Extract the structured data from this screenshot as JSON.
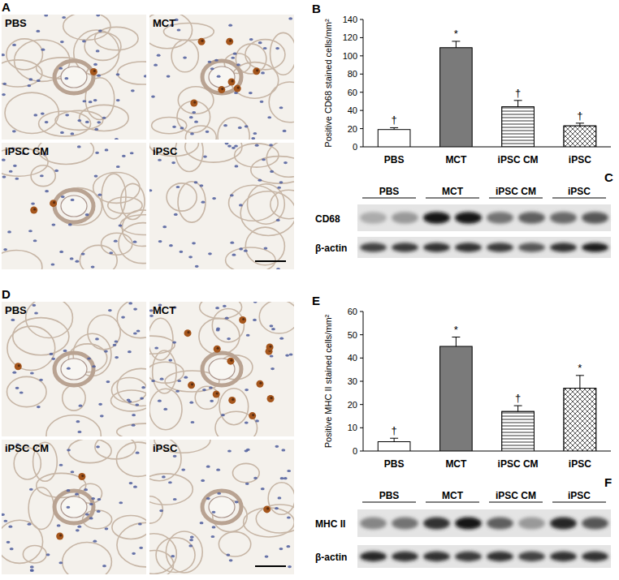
{
  "panels": [
    {
      "label": "A",
      "images": [
        "PBS",
        "MCT",
        "iPSC CM",
        "iPSC"
      ]
    },
    {
      "label": "D",
      "images": [
        "PBS",
        "MCT",
        "iPSC CM",
        "iPSC"
      ]
    }
  ],
  "chart_data": [
    {
      "type": "bar",
      "title": "B",
      "y_label": "Positive CD68 stained cells/mm²",
      "categories": [
        "PBS",
        "MCT",
        "iPSC CM",
        "iPSC"
      ],
      "values": [
        19,
        109,
        44,
        23
      ],
      "errors": [
        2,
        7,
        7,
        3
      ],
      "annotations": [
        "†",
        "*",
        "†",
        "†"
      ],
      "colors": [
        "#ffffff",
        "#7a7a7a",
        "#ffffff",
        "#ffffff"
      ],
      "ylim": [
        0,
        140
      ],
      "yticks": [
        0,
        20,
        40,
        60,
        80,
        100,
        120,
        140
      ],
      "grid": false
    },
    {
      "type": "bar",
      "title": "E",
      "y_label": "Positive MHC II stained cells/mm²",
      "categories": [
        "PBS",
        "MCT",
        "iPSC CM",
        "iPSC"
      ],
      "values": [
        4,
        45,
        17,
        27
      ],
      "errors": [
        1.5,
        4,
        2.5,
        5.5
      ],
      "annotations": [
        "†",
        "*",
        "†",
        "*"
      ],
      "colors": [
        "#ffffff",
        "#7a7a7a",
        "#ffffff",
        "#ffffff"
      ],
      "ylim": [
        0,
        60
      ],
      "yticks": [
        0,
        10,
        20,
        30,
        40,
        50,
        60
      ],
      "grid": false
    }
  ],
  "blots": [
    {
      "label": "C",
      "lanes": [
        "PBS",
        "MCT",
        "iPSC CM",
        "iPSC"
      ],
      "rows": [
        "CD68",
        "β-actin"
      ]
    },
    {
      "label": "F",
      "lanes": [
        "PBS",
        "MCT",
        "iPSC CM",
        "iPSC"
      ],
      "rows": [
        "MHC II",
        "β-actin"
      ]
    }
  ]
}
